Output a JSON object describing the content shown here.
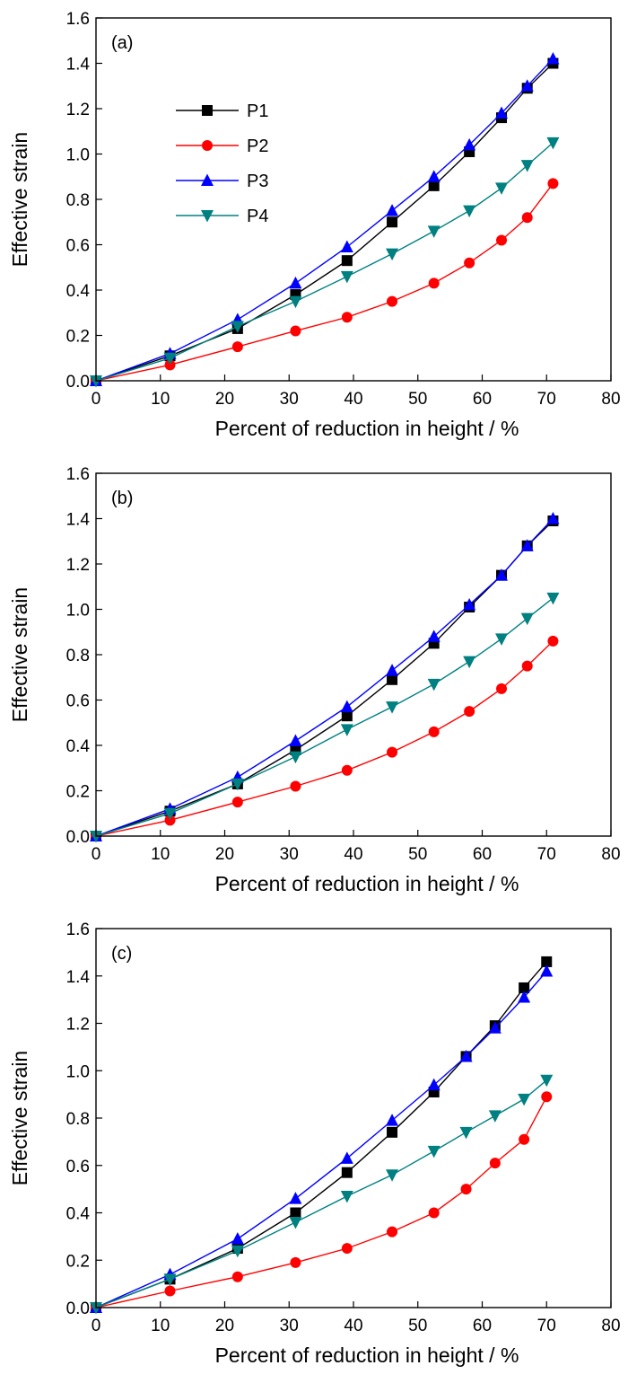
{
  "legend": {
    "items": [
      {
        "label": "P1",
        "color": "#000000",
        "marker": "square"
      },
      {
        "label": "P2",
        "color": "#ff0000",
        "marker": "circle"
      },
      {
        "label": "P3",
        "color": "#0000ff",
        "marker": "triangle-up"
      },
      {
        "label": "P4",
        "color": "#008080",
        "marker": "triangle-down"
      }
    ]
  },
  "chart_data": [
    {
      "type": "line",
      "panel_label": "(a)",
      "xlabel": "Percent of reduction in height / %",
      "ylabel": "Effective strain",
      "xlim": [
        0,
        80
      ],
      "ylim": [
        0,
        1.6
      ],
      "xticks": [
        "0",
        "10",
        "20",
        "30",
        "40",
        "50",
        "60",
        "70",
        "80"
      ],
      "yticks": [
        "0.0",
        "0.2",
        "0.4",
        "0.6",
        "0.8",
        "1.0",
        "1.2",
        "1.4",
        "1.6"
      ],
      "grid": false,
      "legend_position": "upper-left",
      "series": [
        {
          "name": "P1",
          "x": [
            0,
            11.5,
            22,
            31,
            39,
            46,
            52.5,
            58,
            63,
            67,
            71
          ],
          "y": [
            0,
            0.11,
            0.23,
            0.38,
            0.53,
            0.7,
            0.86,
            1.01,
            1.16,
            1.29,
            1.4
          ]
        },
        {
          "name": "P2",
          "x": [
            0,
            11.5,
            22,
            31,
            39,
            46,
            52.5,
            58,
            63,
            67,
            71
          ],
          "y": [
            0,
            0.07,
            0.15,
            0.22,
            0.28,
            0.35,
            0.43,
            0.52,
            0.62,
            0.72,
            0.87
          ]
        },
        {
          "name": "P3",
          "x": [
            0,
            11.5,
            22,
            31,
            39,
            46,
            52.5,
            58,
            63,
            67,
            71
          ],
          "y": [
            0,
            0.12,
            0.27,
            0.43,
            0.59,
            0.75,
            0.9,
            1.04,
            1.18,
            1.3,
            1.42
          ]
        },
        {
          "name": "P4",
          "x": [
            0,
            11.5,
            22,
            31,
            39,
            46,
            52.5,
            58,
            63,
            67,
            71
          ],
          "y": [
            0,
            0.1,
            0.24,
            0.35,
            0.46,
            0.56,
            0.66,
            0.75,
            0.85,
            0.95,
            1.05
          ]
        }
      ]
    },
    {
      "type": "line",
      "panel_label": "(b)",
      "xlabel": "Percent of reduction in height / %",
      "ylabel": "Effective strain",
      "xlim": [
        0,
        80
      ],
      "ylim": [
        0,
        1.6
      ],
      "xticks": [
        "0",
        "10",
        "20",
        "30",
        "40",
        "50",
        "60",
        "70",
        "80"
      ],
      "yticks": [
        "0.0",
        "0.2",
        "0.4",
        "0.6",
        "0.8",
        "1.0",
        "1.2",
        "1.4",
        "1.6"
      ],
      "grid": false,
      "legend_position": "none",
      "series": [
        {
          "name": "P1",
          "x": [
            0,
            11.5,
            22,
            31,
            39,
            46,
            52.5,
            58,
            63,
            67,
            71
          ],
          "y": [
            0,
            0.11,
            0.23,
            0.38,
            0.53,
            0.69,
            0.85,
            1.01,
            1.15,
            1.28,
            1.39
          ]
        },
        {
          "name": "P2",
          "x": [
            0,
            11.5,
            22,
            31,
            39,
            46,
            52.5,
            58,
            63,
            67,
            71
          ],
          "y": [
            0,
            0.07,
            0.15,
            0.22,
            0.29,
            0.37,
            0.46,
            0.55,
            0.65,
            0.75,
            0.86
          ]
        },
        {
          "name": "P3",
          "x": [
            0,
            11.5,
            22,
            31,
            39,
            46,
            52.5,
            58,
            63,
            67,
            71
          ],
          "y": [
            0,
            0.12,
            0.26,
            0.42,
            0.57,
            0.73,
            0.88,
            1.02,
            1.15,
            1.28,
            1.4
          ]
        },
        {
          "name": "P4",
          "x": [
            0,
            11.5,
            22,
            31,
            39,
            46,
            52.5,
            58,
            63,
            67,
            71
          ],
          "y": [
            0,
            0.1,
            0.23,
            0.35,
            0.47,
            0.57,
            0.67,
            0.77,
            0.87,
            0.96,
            1.05
          ]
        }
      ]
    },
    {
      "type": "line",
      "panel_label": "(c)",
      "xlabel": "Percent of reduction in height / %",
      "ylabel": "Effective strain",
      "xlim": [
        0,
        80
      ],
      "ylim": [
        0,
        1.6
      ],
      "xticks": [
        "0",
        "10",
        "20",
        "30",
        "40",
        "50",
        "60",
        "70",
        "80"
      ],
      "yticks": [
        "0.0",
        "0.2",
        "0.4",
        "0.6",
        "0.8",
        "1.0",
        "1.2",
        "1.4",
        "1.6"
      ],
      "grid": false,
      "legend_position": "none",
      "series": [
        {
          "name": "P1",
          "x": [
            0,
            11.5,
            22,
            31,
            39,
            46,
            52.5,
            57.5,
            62,
            66.5,
            70
          ],
          "y": [
            0,
            0.12,
            0.25,
            0.4,
            0.57,
            0.74,
            0.91,
            1.06,
            1.19,
            1.35,
            1.46
          ]
        },
        {
          "name": "P2",
          "x": [
            0,
            11.5,
            22,
            31,
            39,
            46,
            52.5,
            57.5,
            62,
            66.5,
            70
          ],
          "y": [
            0,
            0.07,
            0.13,
            0.19,
            0.25,
            0.32,
            0.4,
            0.5,
            0.61,
            0.71,
            0.89
          ]
        },
        {
          "name": "P3",
          "x": [
            0,
            11.5,
            22,
            31,
            39,
            46,
            52.5,
            57.5,
            62,
            66.5,
            70
          ],
          "y": [
            0,
            0.14,
            0.29,
            0.46,
            0.63,
            0.79,
            0.94,
            1.06,
            1.18,
            1.31,
            1.42
          ]
        },
        {
          "name": "P4",
          "x": [
            0,
            11.5,
            22,
            31,
            39,
            46,
            52.5,
            57.5,
            62,
            66.5,
            70
          ],
          "y": [
            0,
            0.12,
            0.24,
            0.36,
            0.47,
            0.56,
            0.66,
            0.74,
            0.81,
            0.88,
            0.96
          ]
        }
      ]
    }
  ]
}
